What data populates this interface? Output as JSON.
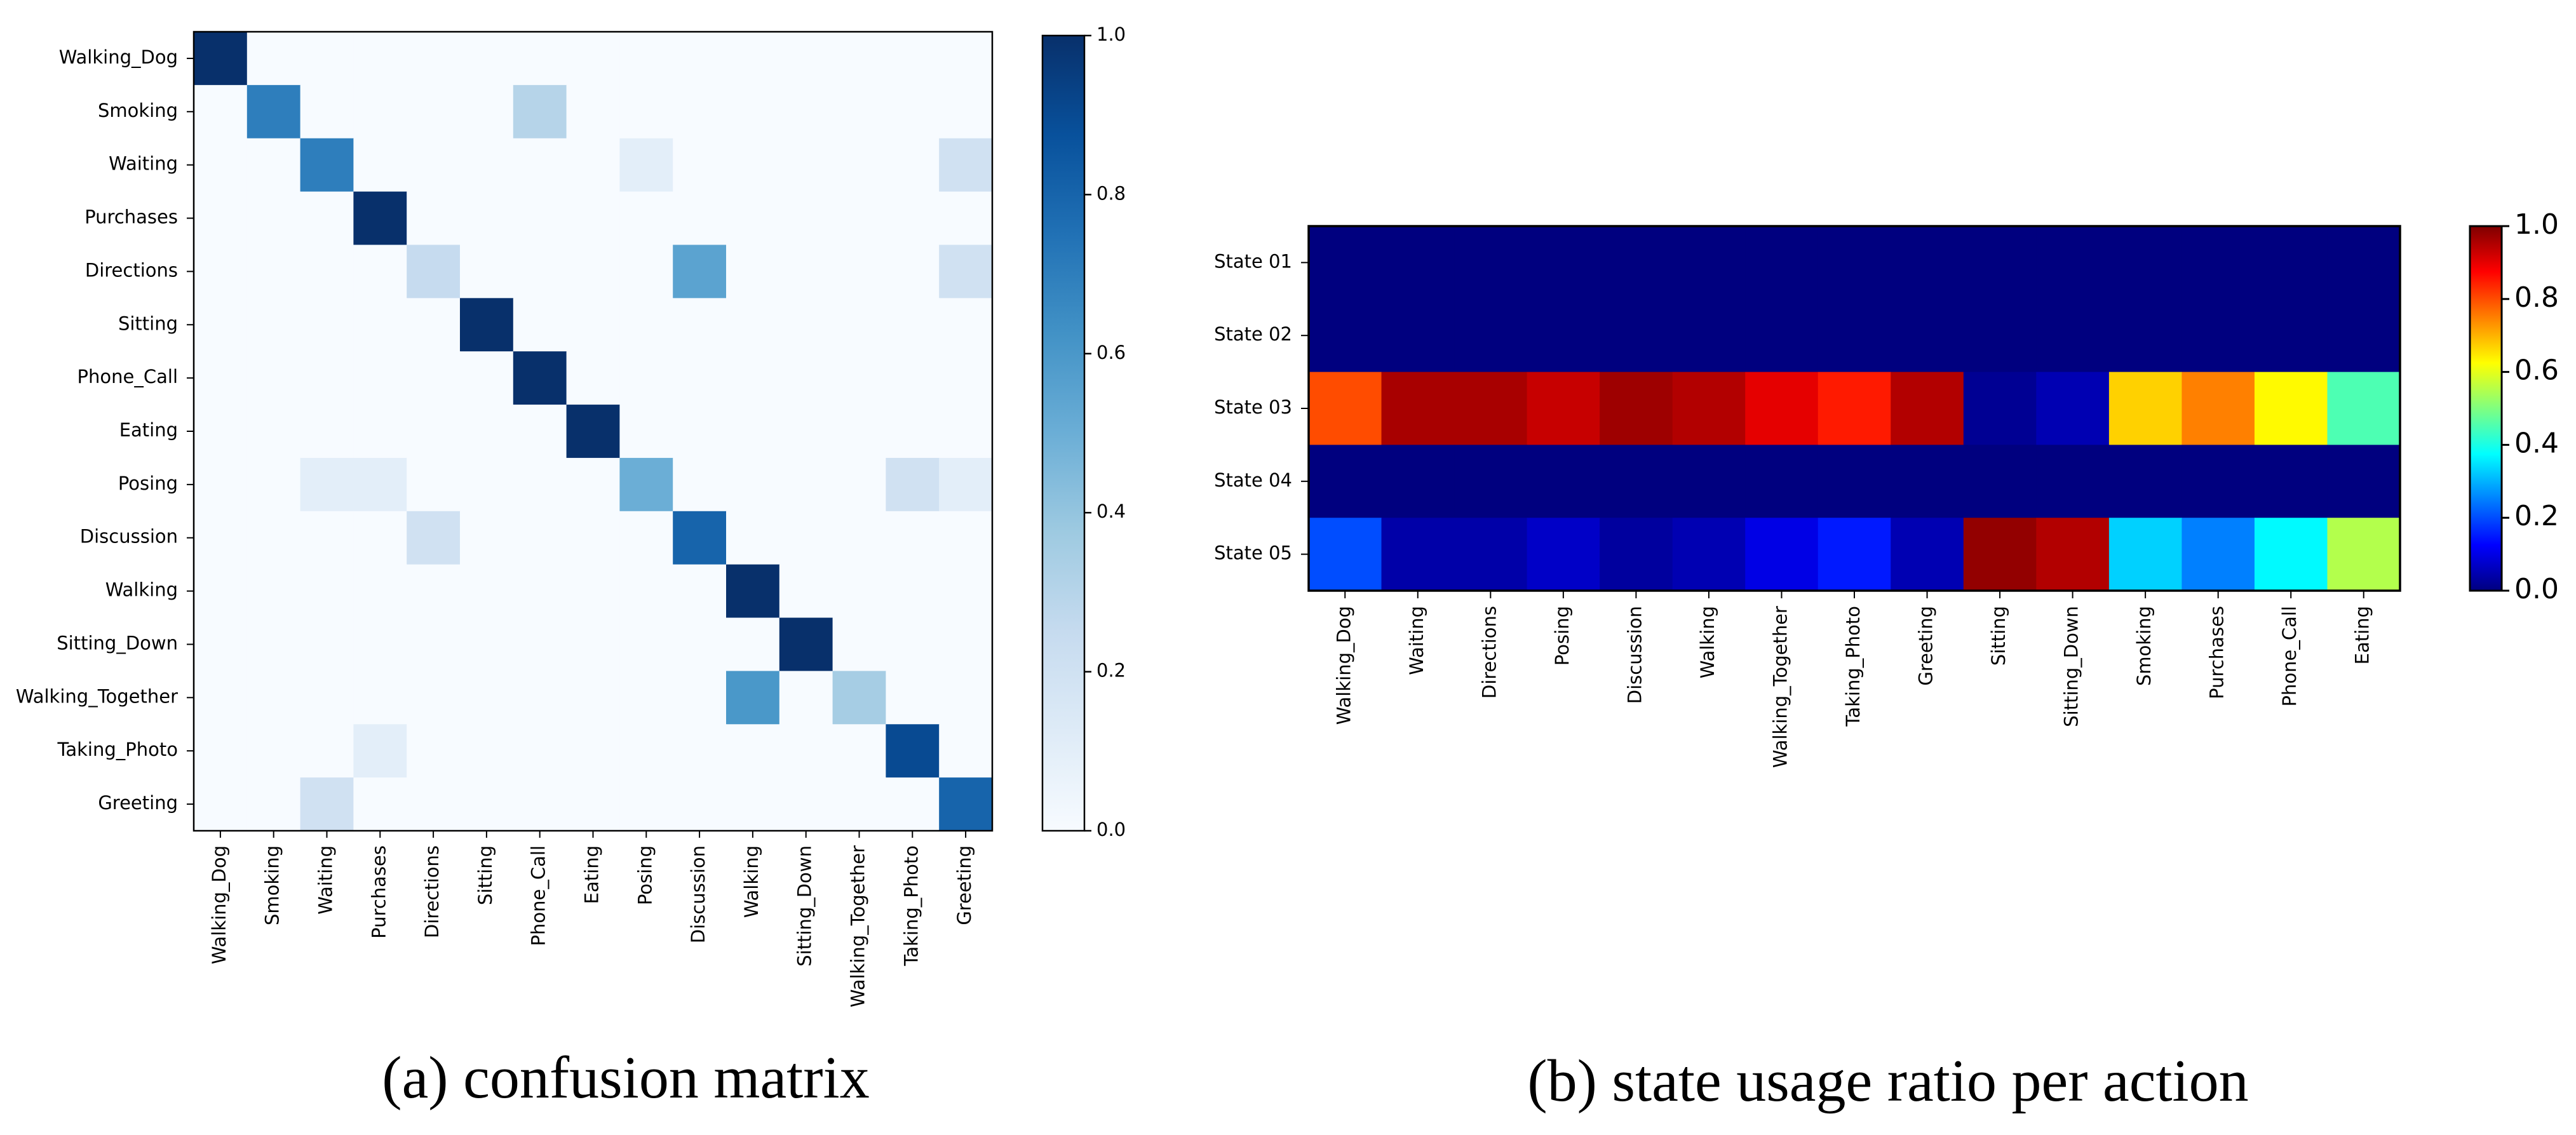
{
  "chart_data": [
    {
      "type": "heatmap",
      "title": "",
      "caption": "(a) confusion matrix",
      "colormap": "Blues",
      "x_categories": [
        "Walking_Dog",
        "Smoking",
        "Waiting",
        "Purchases",
        "Directions",
        "Sitting",
        "Phone_Call",
        "Eating",
        "Posing",
        "Discussion",
        "Walking",
        "Sitting_Down",
        "Walking_Together",
        "Taking_Photo",
        "Greeting"
      ],
      "y_categories": [
        "Walking_Dog",
        "Smoking",
        "Waiting",
        "Purchases",
        "Directions",
        "Sitting",
        "Phone_Call",
        "Eating",
        "Posing",
        "Discussion",
        "Walking",
        "Sitting_Down",
        "Walking_Together",
        "Taking_Photo",
        "Greeting"
      ],
      "values": [
        [
          1,
          0,
          0,
          0,
          0,
          0,
          0,
          0,
          0,
          0,
          0,
          0,
          0,
          0,
          0
        ],
        [
          0,
          0.7,
          0,
          0,
          0,
          0,
          0.3,
          0,
          0,
          0,
          0,
          0,
          0,
          0,
          0
        ],
        [
          0,
          0,
          0.7,
          0,
          0,
          0,
          0,
          0,
          0.1,
          0,
          0,
          0,
          0,
          0,
          0.2
        ],
        [
          0,
          0,
          0,
          1,
          0,
          0,
          0,
          0,
          0,
          0,
          0,
          0,
          0,
          0,
          0
        ],
        [
          0,
          0,
          0,
          0,
          0.25,
          0,
          0,
          0,
          0,
          0.55,
          0,
          0,
          0,
          0,
          0.2
        ],
        [
          0,
          0,
          0,
          0,
          0,
          1,
          0,
          0,
          0,
          0,
          0,
          0,
          0,
          0,
          0
        ],
        [
          0,
          0,
          0,
          0,
          0,
          0,
          1,
          0,
          0,
          0,
          0,
          0,
          0,
          0,
          0
        ],
        [
          0,
          0,
          0,
          0,
          0,
          0,
          0,
          1,
          0,
          0,
          0,
          0,
          0,
          0,
          0
        ],
        [
          0,
          0,
          0.1,
          0.1,
          0,
          0,
          0,
          0,
          0.5,
          0,
          0,
          0,
          0,
          0.2,
          0.1
        ],
        [
          0,
          0,
          0,
          0,
          0.2,
          0,
          0,
          0,
          0,
          0.8,
          0,
          0,
          0,
          0,
          0
        ],
        [
          0,
          0,
          0,
          0,
          0,
          0,
          0,
          0,
          0,
          0,
          1,
          0,
          0,
          0,
          0
        ],
        [
          0,
          0,
          0,
          0,
          0,
          0,
          0,
          0,
          0,
          0,
          0,
          1,
          0,
          0,
          0
        ],
        [
          0,
          0,
          0,
          0,
          0,
          0,
          0,
          0,
          0,
          0,
          0.6,
          0,
          0.35,
          0,
          0
        ],
        [
          0,
          0,
          0,
          0.1,
          0,
          0,
          0,
          0,
          0,
          0,
          0,
          0,
          0,
          0.9,
          0
        ],
        [
          0,
          0,
          0.2,
          0,
          0,
          0,
          0,
          0,
          0,
          0,
          0,
          0,
          0,
          0,
          0.8
        ]
      ],
      "colorbar": {
        "range": [
          0,
          1
        ],
        "ticks": [
          "0.0",
          "0.2",
          "0.4",
          "0.6",
          "0.8",
          "1.0"
        ]
      }
    },
    {
      "type": "heatmap",
      "title": "",
      "caption": "(b) state usage ratio per action",
      "colormap": "Jet",
      "x_categories": [
        "Walking_Dog",
        "Waiting",
        "Directions",
        "Posing",
        "Discussion",
        "Walking",
        "Walking_Together",
        "Taking_Photo",
        "Greeting",
        "Sitting",
        "Sitting_Down",
        "Smoking",
        "Purchases",
        "Phone_Call",
        "Eating"
      ],
      "y_categories": [
        "State 01",
        "State 02",
        "State 03",
        "State 04",
        "State 05"
      ],
      "values": [
        [
          0,
          0,
          0,
          0,
          0,
          0,
          0,
          0,
          0,
          0,
          0,
          0,
          0,
          0,
          0
        ],
        [
          0,
          0,
          0,
          0,
          0,
          0,
          0,
          0,
          0,
          0,
          0,
          0,
          0,
          0,
          0
        ],
        [
          0.8,
          0.96,
          0.96,
          0.93,
          0.97,
          0.95,
          0.9,
          0.85,
          0.95,
          0.02,
          0.05,
          0.67,
          0.75,
          0.63,
          0.45
        ],
        [
          0,
          0,
          0,
          0,
          0,
          0,
          0,
          0,
          0,
          0,
          0,
          0,
          0,
          0,
          0
        ],
        [
          0.2,
          0.04,
          0.04,
          0.07,
          0.03,
          0.05,
          0.1,
          0.15,
          0.05,
          0.98,
          0.95,
          0.33,
          0.25,
          0.37,
          0.55
        ]
      ],
      "colorbar": {
        "range": [
          0,
          1
        ],
        "ticks": [
          "0.0",
          "0.2",
          "0.4",
          "0.6",
          "0.8",
          "1.0"
        ]
      }
    }
  ]
}
